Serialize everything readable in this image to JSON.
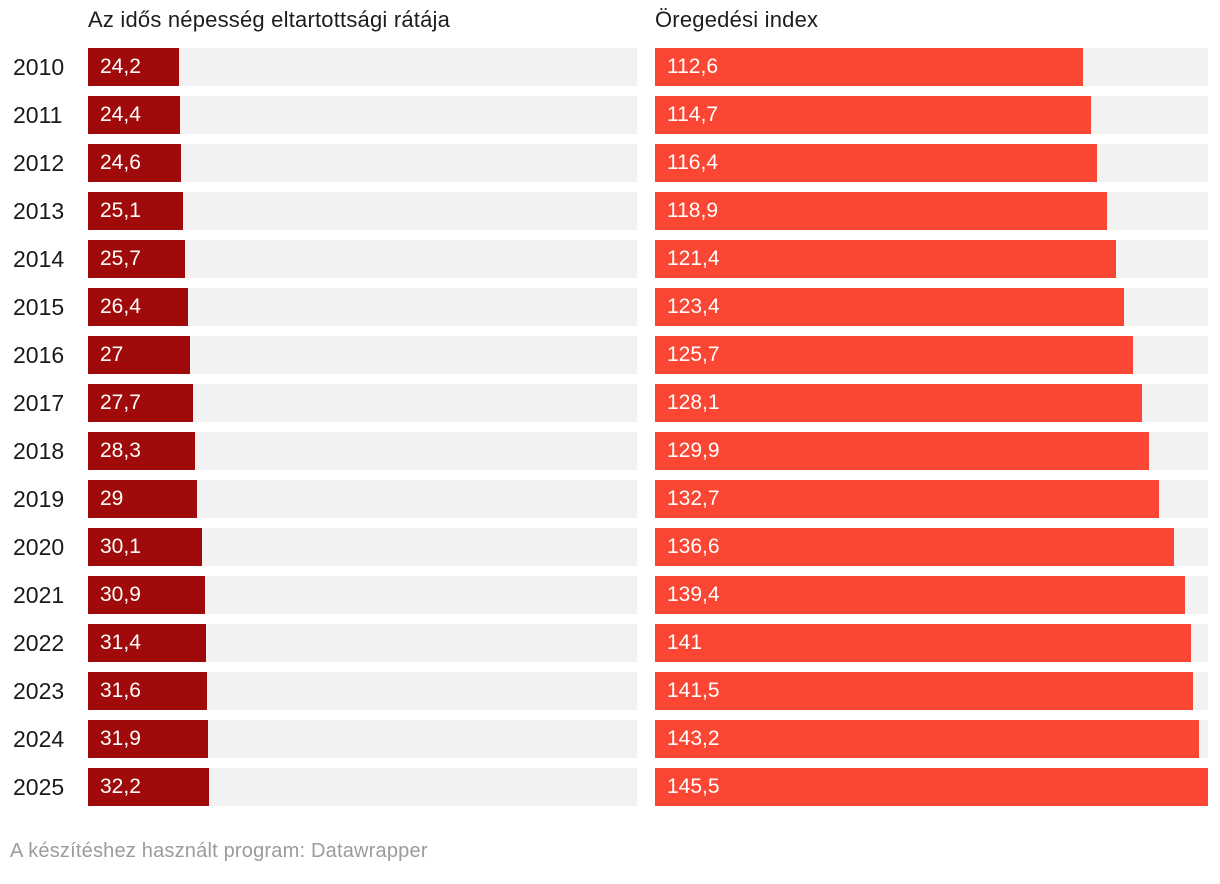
{
  "chart_data": {
    "type": "bar",
    "orientation": "horizontal",
    "layout": "two side-by-side bar columns sharing one x scale, value labels inside bars, year labels at left, no gridlines or axis ticks",
    "title": "",
    "categories": [
      "2010",
      "2011",
      "2012",
      "2013",
      "2014",
      "2015",
      "2016",
      "2017",
      "2018",
      "2019",
      "2020",
      "2021",
      "2022",
      "2023",
      "2024",
      "2025"
    ],
    "series": [
      {
        "name": "Az idős népesség eltartottsági rátája",
        "color": "#a00a0a",
        "values": [
          24.2,
          24.4,
          24.6,
          25.1,
          25.7,
          26.4,
          27,
          27.7,
          28.3,
          29,
          30.1,
          30.9,
          31.4,
          31.6,
          31.9,
          32.2
        ],
        "labels": [
          "24,2",
          "24,4",
          "24,6",
          "25,1",
          "25,7",
          "26,4",
          "27",
          "27,7",
          "28,3",
          "29",
          "30,1",
          "30,9",
          "31,4",
          "31,6",
          "31,9",
          "32,2"
        ]
      },
      {
        "name": "Öregedési index",
        "color": "#fb4634",
        "values": [
          112.6,
          114.7,
          116.4,
          118.9,
          121.4,
          123.4,
          125.7,
          128.1,
          129.9,
          132.7,
          136.6,
          139.4,
          141,
          141.5,
          143.2,
          145.5
        ],
        "labels": [
          "112,6",
          "114,7",
          "116,4",
          "118,9",
          "121,4",
          "123,4",
          "125,7",
          "128,1",
          "129,9",
          "132,7",
          "136,6",
          "139,4",
          "141",
          "141,5",
          "143,2",
          "145,5"
        ]
      }
    ],
    "xlim": [
      0,
      145.5
    ],
    "track_color": "#f2f2f2",
    "value_label_color": "#ffffff",
    "decimal_separator": ",",
    "legend_position": "column headers above bars",
    "grid": false
  },
  "footer": {
    "text": "A készítéshez használt program: Datawrapper"
  }
}
